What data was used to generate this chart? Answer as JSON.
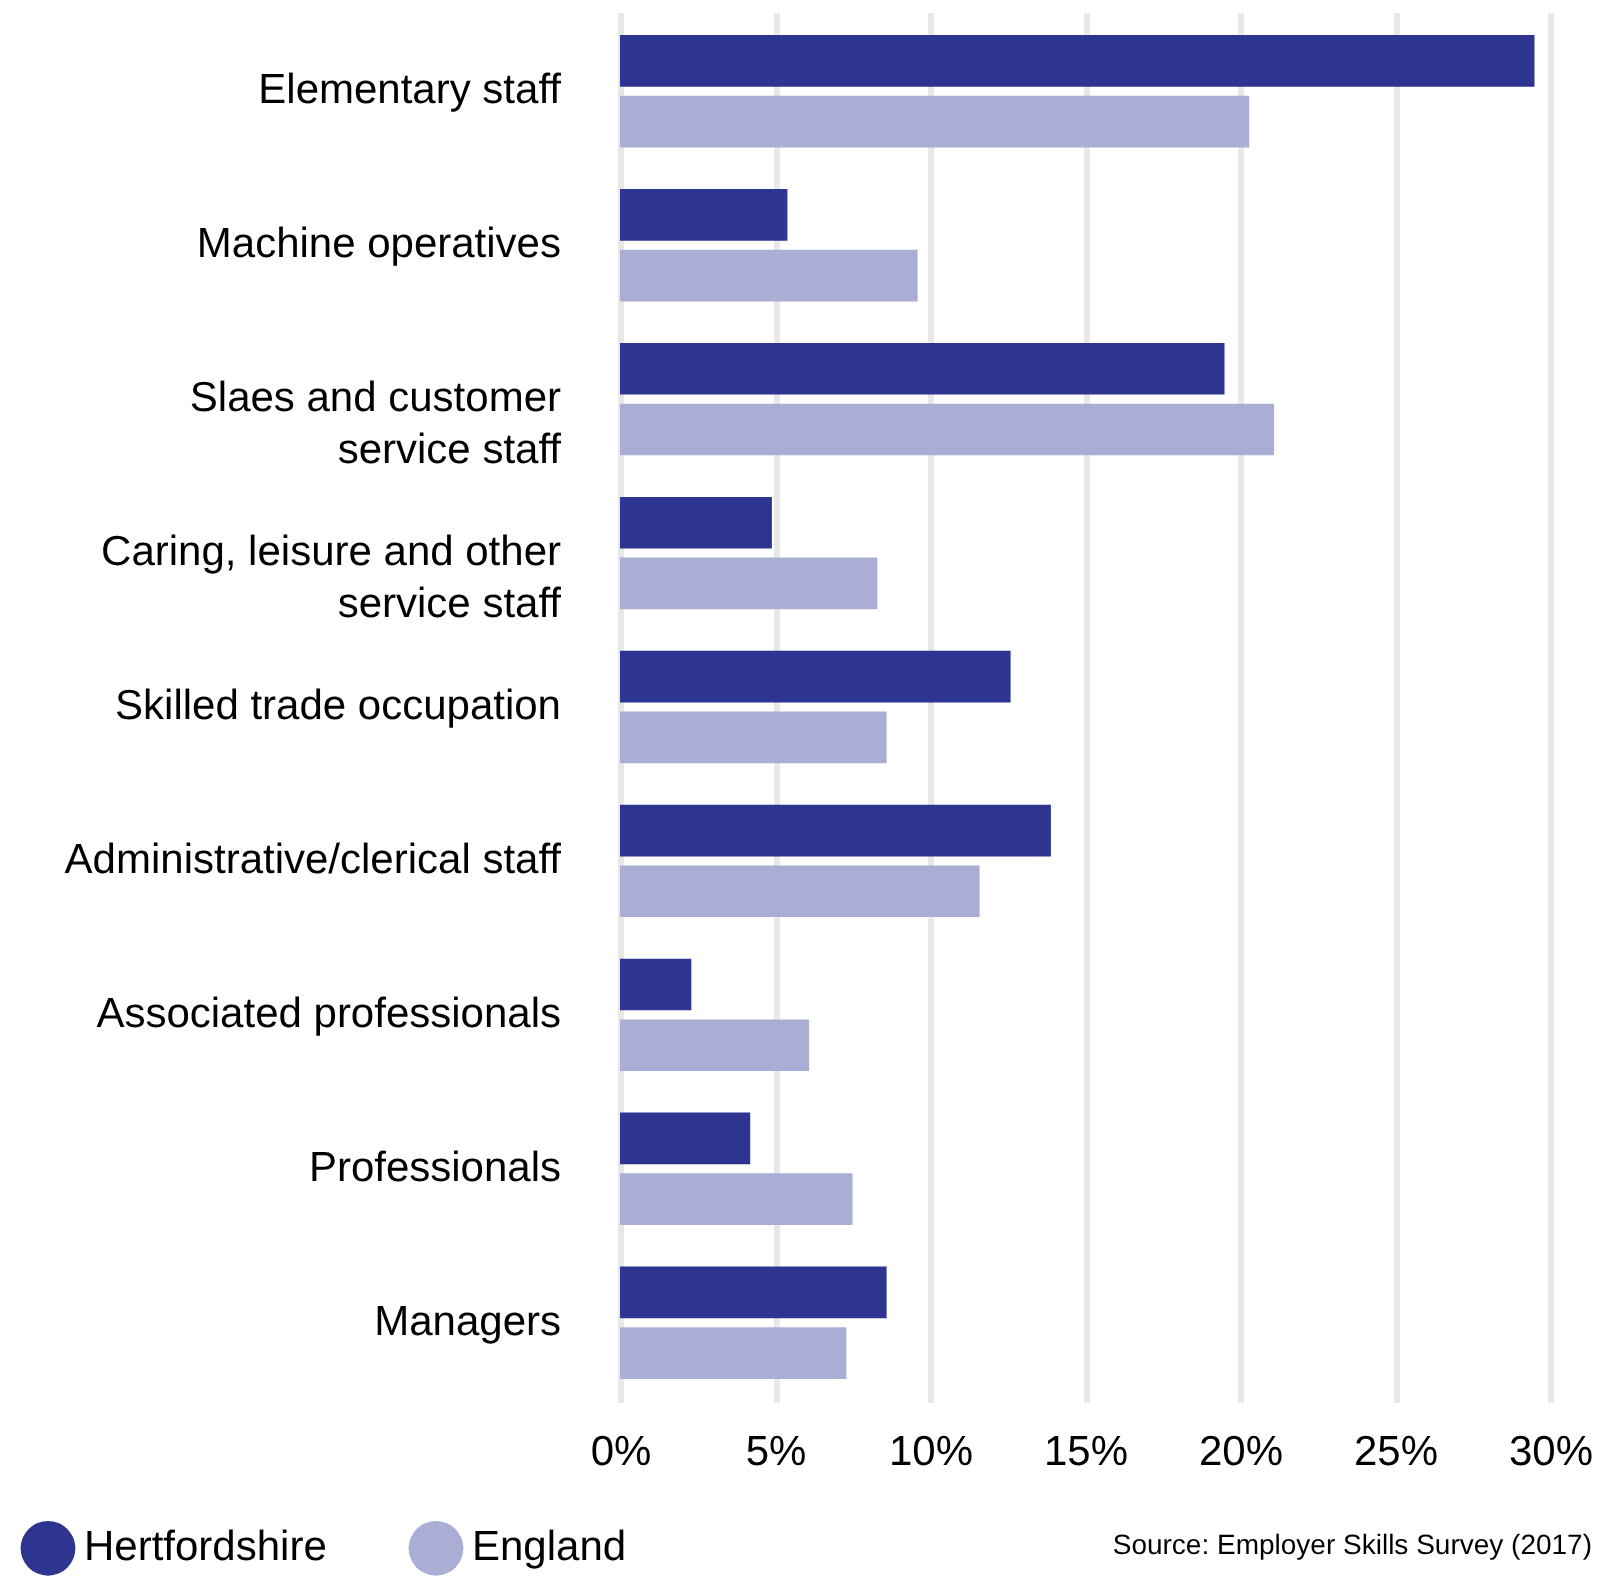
{
  "chart_data": {
    "type": "bar",
    "orientation": "horizontal",
    "categories": [
      "Elementary staff",
      "Machine operatives",
      "Slaes and customer service staff",
      "Caring, leisure and other service staff",
      "Skilled trade occupation",
      "Administrative/clerical staff",
      "Associated professionals",
      "Professionals",
      "Managers"
    ],
    "series": [
      {
        "name": "Hertfordshire",
        "color": "#2d3591",
        "values": [
          29.5,
          5.4,
          19.5,
          4.9,
          12.6,
          13.9,
          2.3,
          4.2,
          8.6
        ]
      },
      {
        "name": "England",
        "color": "#abaed4",
        "values": [
          20.3,
          9.6,
          21.1,
          8.3,
          8.6,
          11.6,
          6.1,
          7.5,
          7.3
        ]
      }
    ],
    "xlim": [
      0,
      30
    ],
    "xticks": [
      {
        "value": 0,
        "label": "0%"
      },
      {
        "value": 5,
        "label": "5%"
      },
      {
        "value": 10,
        "label": "10%"
      },
      {
        "value": 15,
        "label": "15%"
      },
      {
        "value": 20,
        "label": "20%"
      },
      {
        "value": 25,
        "label": "25%"
      },
      {
        "value": 30,
        "label": "30%"
      }
    ],
    "grid": "x",
    "legend": "bottom left",
    "annotations": [
      "Source: Employer Skills Survey (2017)"
    ]
  }
}
